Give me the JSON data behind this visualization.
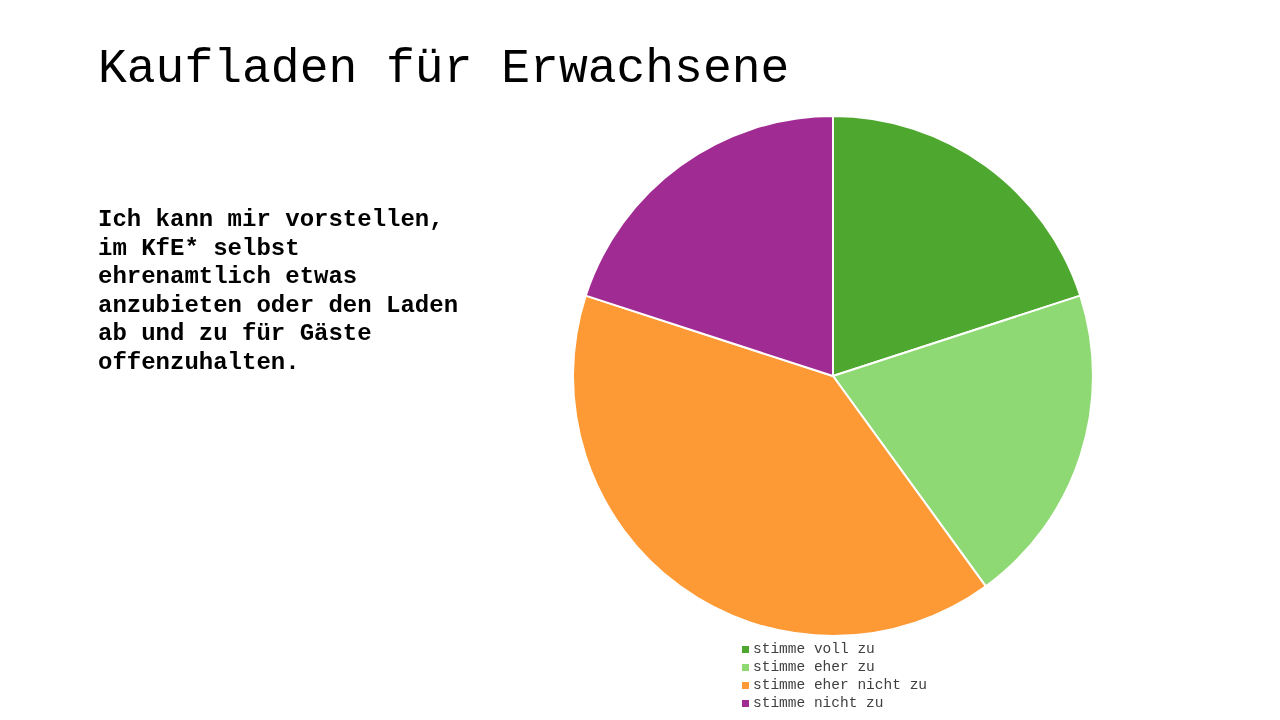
{
  "chart_data": {
    "type": "pie",
    "title": "Kaufladen für Erwachsene",
    "subtitle": "Ich kann mir vorstellen, im KfE* selbst ehrenamtlich etwas anzubieten oder den Laden ab und zu für Gäste offenzuhalten.",
    "categories": [
      "stimme voll zu",
      "stimme eher zu",
      "stimme eher nicht zu",
      "stimme nicht zu"
    ],
    "values": [
      20,
      20,
      40,
      20
    ],
    "colors": [
      "#4ea72e",
      "#8ed973",
      "#fe9a35",
      "#a02b93"
    ],
    "legend": "bottom"
  }
}
